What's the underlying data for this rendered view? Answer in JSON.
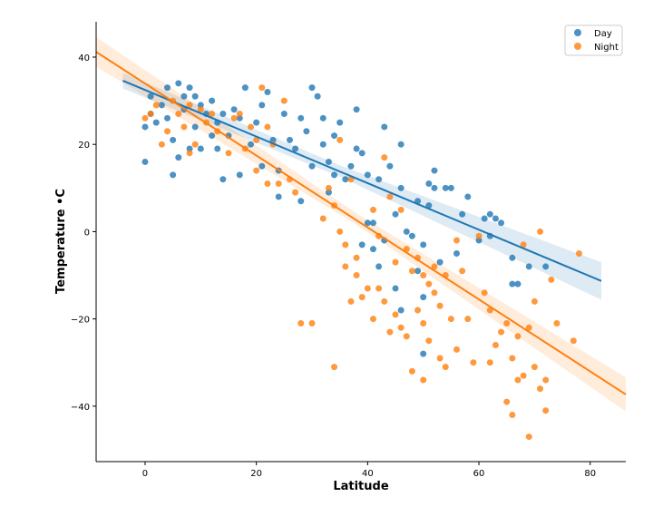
{
  "chart_data": {
    "type": "scatter",
    "title": "",
    "xlabel": "Latitude",
    "ylabel": "Temperature •C",
    "xlim": [
      -8.8,
      86.4
    ],
    "ylim": [
      -52.7,
      48.1
    ],
    "xticks": [
      0,
      20,
      40,
      60,
      80
    ],
    "yticks": [
      -40,
      -20,
      0,
      20,
      40
    ],
    "grid": false,
    "legend": "top-right",
    "series": [
      {
        "name": "Day",
        "color": "#1f77b4",
        "points": [
          [
            0,
            16
          ],
          [
            0,
            24
          ],
          [
            1,
            27
          ],
          [
            1,
            31
          ],
          [
            2,
            25
          ],
          [
            3,
            29
          ],
          [
            4,
            33
          ],
          [
            4,
            26
          ],
          [
            5,
            21
          ],
          [
            5,
            13
          ],
          [
            6,
            17
          ],
          [
            6,
            34
          ],
          [
            7,
            28
          ],
          [
            7,
            31
          ],
          [
            8,
            19
          ],
          [
            8,
            33
          ],
          [
            9,
            24
          ],
          [
            9,
            31
          ],
          [
            10,
            19
          ],
          [
            10,
            29
          ],
          [
            11,
            27
          ],
          [
            12,
            22
          ],
          [
            12,
            30
          ],
          [
            13,
            19
          ],
          [
            13,
            25
          ],
          [
            14,
            27
          ],
          [
            14,
            12
          ],
          [
            15,
            22
          ],
          [
            16,
            28
          ],
          [
            17,
            13
          ],
          [
            17,
            26
          ],
          [
            18,
            33
          ],
          [
            19,
            20
          ],
          [
            20,
            25
          ],
          [
            21,
            15
          ],
          [
            21,
            29
          ],
          [
            22,
            32
          ],
          [
            23,
            21
          ],
          [
            24,
            8
          ],
          [
            24,
            14
          ],
          [
            25,
            27
          ],
          [
            26,
            21
          ],
          [
            27,
            19
          ],
          [
            28,
            26
          ],
          [
            28,
            7
          ],
          [
            29,
            23
          ],
          [
            30,
            15
          ],
          [
            30,
            33
          ],
          [
            31,
            31
          ],
          [
            32,
            20
          ],
          [
            32,
            26
          ],
          [
            33,
            9
          ],
          [
            33,
            16
          ],
          [
            34,
            22
          ],
          [
            34,
            13
          ],
          [
            35,
            25
          ],
          [
            36,
            12
          ],
          [
            37,
            15
          ],
          [
            38,
            19
          ],
          [
            38,
            28
          ],
          [
            39,
            18
          ],
          [
            39,
            -3
          ],
          [
            40,
            2
          ],
          [
            40,
            13
          ],
          [
            41,
            2
          ],
          [
            41,
            -4
          ],
          [
            42,
            12
          ],
          [
            42,
            -8
          ],
          [
            43,
            24
          ],
          [
            43,
            -2
          ],
          [
            44,
            15
          ],
          [
            45,
            4
          ],
          [
            45,
            -13
          ],
          [
            46,
            10
          ],
          [
            46,
            -18
          ],
          [
            46,
            20
          ],
          [
            47,
            0
          ],
          [
            48,
            -1
          ],
          [
            49,
            7
          ],
          [
            49,
            -9
          ],
          [
            50,
            -15
          ],
          [
            50,
            -28
          ],
          [
            50,
            -3
          ],
          [
            51,
            11
          ],
          [
            51,
            6
          ],
          [
            52,
            14
          ],
          [
            52,
            10
          ],
          [
            53,
            -7
          ],
          [
            54,
            10
          ],
          [
            55,
            10
          ],
          [
            56,
            -5
          ],
          [
            57,
            4
          ],
          [
            58,
            8
          ],
          [
            60,
            -2
          ],
          [
            61,
            3
          ],
          [
            62,
            4
          ],
          [
            62,
            -1
          ],
          [
            63,
            3
          ],
          [
            64,
            2
          ],
          [
            66,
            -6
          ],
          [
            66,
            -12
          ],
          [
            67,
            -12
          ],
          [
            69,
            -8
          ],
          [
            72,
            -8
          ]
        ],
        "regression": {
          "x": [
            -4,
            82
          ],
          "y": [
            34.6,
            -11.3
          ]
        },
        "ci_band": [
          [
            -4,
            32.8,
            36.4
          ],
          [
            35,
            12.6,
            15.2
          ],
          [
            82,
            -15.6,
            -7.0
          ]
        ]
      },
      {
        "name": "Night",
        "color": "#ff7f0e",
        "points": [
          [
            0,
            26
          ],
          [
            1,
            27
          ],
          [
            2,
            29
          ],
          [
            3,
            20
          ],
          [
            4,
            23
          ],
          [
            5,
            30
          ],
          [
            6,
            27
          ],
          [
            7,
            24
          ],
          [
            8,
            18
          ],
          [
            8,
            29
          ],
          [
            9,
            20
          ],
          [
            10,
            28
          ],
          [
            11,
            25
          ],
          [
            12,
            27
          ],
          [
            13,
            23
          ],
          [
            15,
            18
          ],
          [
            16,
            26
          ],
          [
            17,
            27
          ],
          [
            18,
            19
          ],
          [
            19,
            24
          ],
          [
            20,
            21
          ],
          [
            20,
            14
          ],
          [
            21,
            33
          ],
          [
            22,
            24
          ],
          [
            22,
            11
          ],
          [
            23,
            20
          ],
          [
            24,
            11
          ],
          [
            25,
            30
          ],
          [
            26,
            12
          ],
          [
            27,
            9
          ],
          [
            28,
            -21
          ],
          [
            30,
            -21
          ],
          [
            32,
            3
          ],
          [
            33,
            10
          ],
          [
            34,
            6
          ],
          [
            34,
            -31
          ],
          [
            35,
            21
          ],
          [
            35,
            0
          ],
          [
            36,
            -3
          ],
          [
            36,
            -8
          ],
          [
            37,
            -16
          ],
          [
            37,
            12
          ],
          [
            38,
            -10
          ],
          [
            38,
            -6
          ],
          [
            39,
            -15
          ],
          [
            40,
            -13
          ],
          [
            41,
            5
          ],
          [
            41,
            -20
          ],
          [
            42,
            -1
          ],
          [
            42,
            -13
          ],
          [
            43,
            -16
          ],
          [
            43,
            17
          ],
          [
            44,
            -23
          ],
          [
            44,
            8
          ],
          [
            45,
            -19
          ],
          [
            45,
            -7
          ],
          [
            46,
            -22
          ],
          [
            46,
            5
          ],
          [
            47,
            -24
          ],
          [
            47,
            -4
          ],
          [
            48,
            -9
          ],
          [
            48,
            -32
          ],
          [
            49,
            -6
          ],
          [
            49,
            -18
          ],
          [
            50,
            -10
          ],
          [
            50,
            -34
          ],
          [
            50,
            -21
          ],
          [
            51,
            -25
          ],
          [
            51,
            -12
          ],
          [
            52,
            -14
          ],
          [
            52,
            -8
          ],
          [
            53,
            -29
          ],
          [
            53,
            -17
          ],
          [
            54,
            -31
          ],
          [
            54,
            -10
          ],
          [
            55,
            -20
          ],
          [
            56,
            -2
          ],
          [
            56,
            -27
          ],
          [
            57,
            -9
          ],
          [
            58,
            -20
          ],
          [
            59,
            -30
          ],
          [
            60,
            -1
          ],
          [
            61,
            -14
          ],
          [
            62,
            -30
          ],
          [
            62,
            -18
          ],
          [
            63,
            -26
          ],
          [
            64,
            -23
          ],
          [
            65,
            -39
          ],
          [
            65,
            -21
          ],
          [
            66,
            -42
          ],
          [
            66,
            -29
          ],
          [
            67,
            -24
          ],
          [
            67,
            -34
          ],
          [
            68,
            -33
          ],
          [
            68,
            -3
          ],
          [
            69,
            -47
          ],
          [
            69,
            -22
          ],
          [
            70,
            -16
          ],
          [
            70,
            -31
          ],
          [
            71,
            -36
          ],
          [
            71,
            0
          ],
          [
            72,
            -34
          ],
          [
            72,
            -41
          ],
          [
            73,
            -11
          ],
          [
            74,
            -21
          ],
          [
            77,
            -25
          ],
          [
            78,
            -5
          ]
        ],
        "regression": {
          "x": [
            -8.8,
            86.4
          ],
          "y": [
            41.2,
            -37.3
          ]
        },
        "ci_band": [
          [
            -8.8,
            37.8,
            44.6
          ],
          [
            38,
            1.6,
            4.2
          ],
          [
            86.4,
            -41.2,
            -33.4
          ]
        ]
      }
    ]
  }
}
